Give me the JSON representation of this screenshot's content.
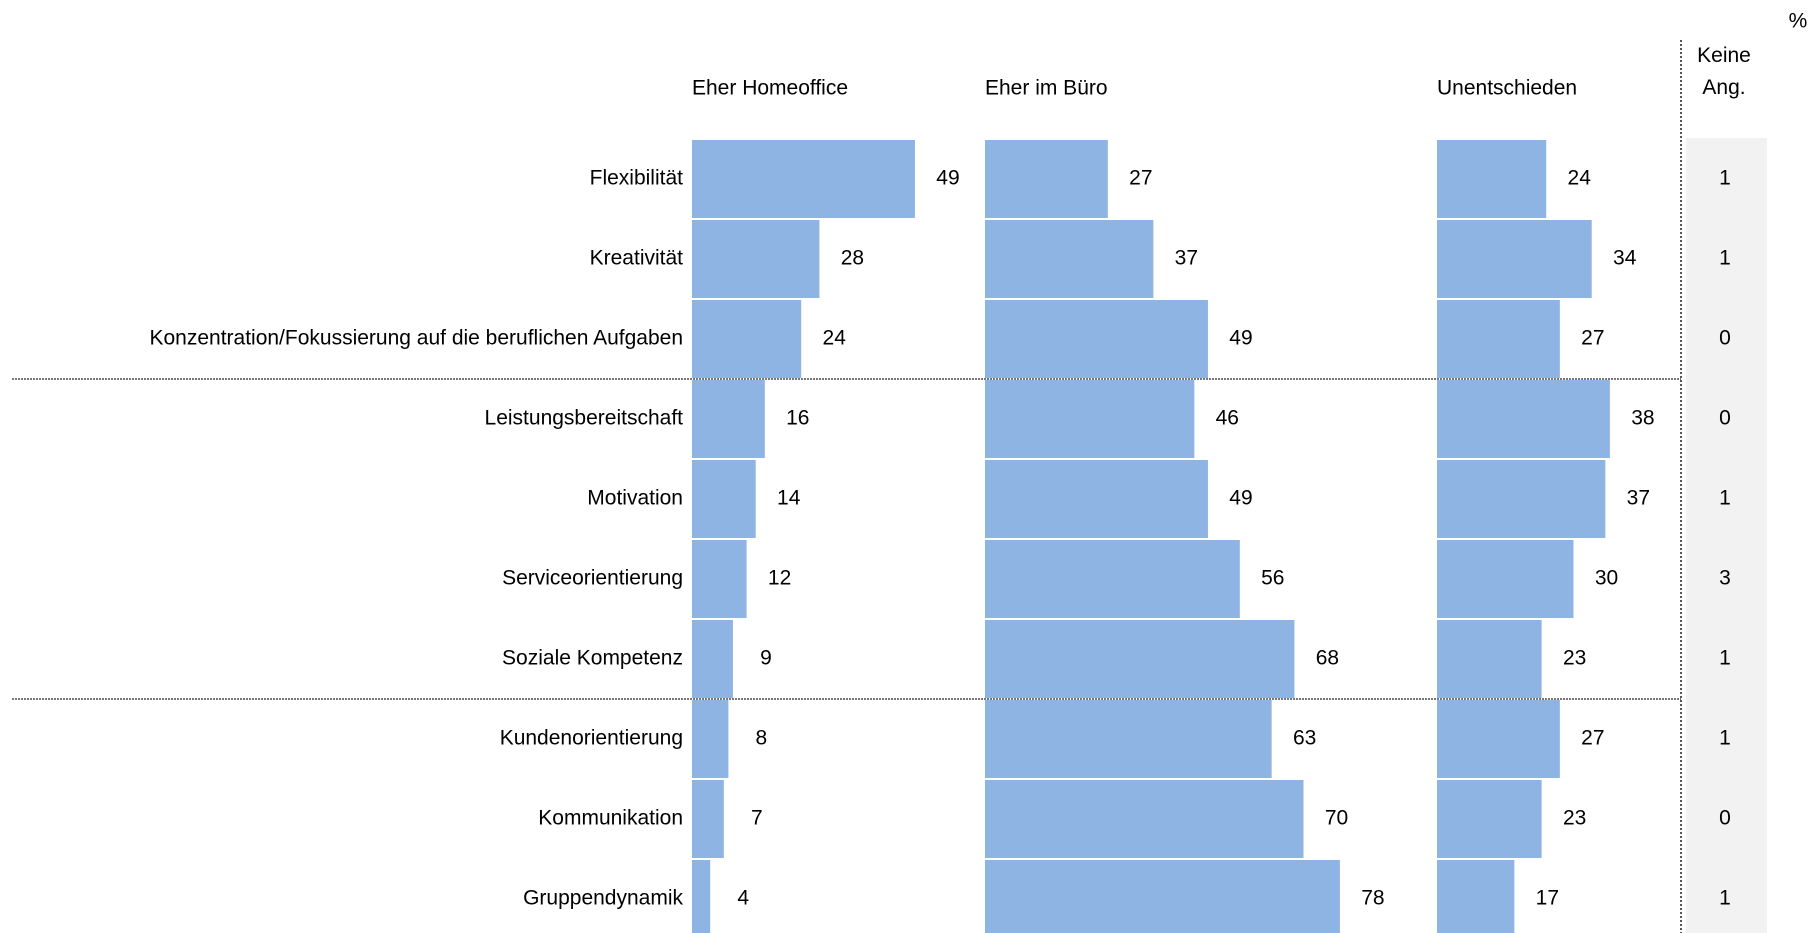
{
  "chart_data": {
    "type": "bar",
    "orientation": "horizontal",
    "unit": "%",
    "categories": [
      "Flexibilität",
      "Kreativität",
      "Konzentration/Fokussierung auf die beruflichen Aufgaben",
      "Leistungsbereitschaft",
      "Motivation",
      "Serviceorientierung",
      "Soziale Kompetenz",
      "Kundenorientierung",
      "Kommunikation",
      "Gruppendynamik"
    ],
    "series": [
      {
        "name": "Eher Homeoffice",
        "color": "#8eb4e3",
        "values": [
          49,
          28,
          24,
          16,
          14,
          12,
          9,
          8,
          7,
          4
        ]
      },
      {
        "name": "Eher im Büro",
        "color": "#8eb4e3",
        "values": [
          27,
          37,
          49,
          46,
          49,
          56,
          68,
          63,
          70,
          78
        ]
      },
      {
        "name": "Unentschieden",
        "color": "#8eb4e3",
        "values": [
          24,
          34,
          27,
          38,
          37,
          30,
          23,
          27,
          23,
          17
        ]
      }
    ],
    "no_answer": {
      "name": "Keine Ang.",
      "values": [
        1,
        1,
        0,
        0,
        1,
        3,
        1,
        1,
        0,
        1
      ]
    },
    "xlim": [
      0,
      100
    ]
  }
}
